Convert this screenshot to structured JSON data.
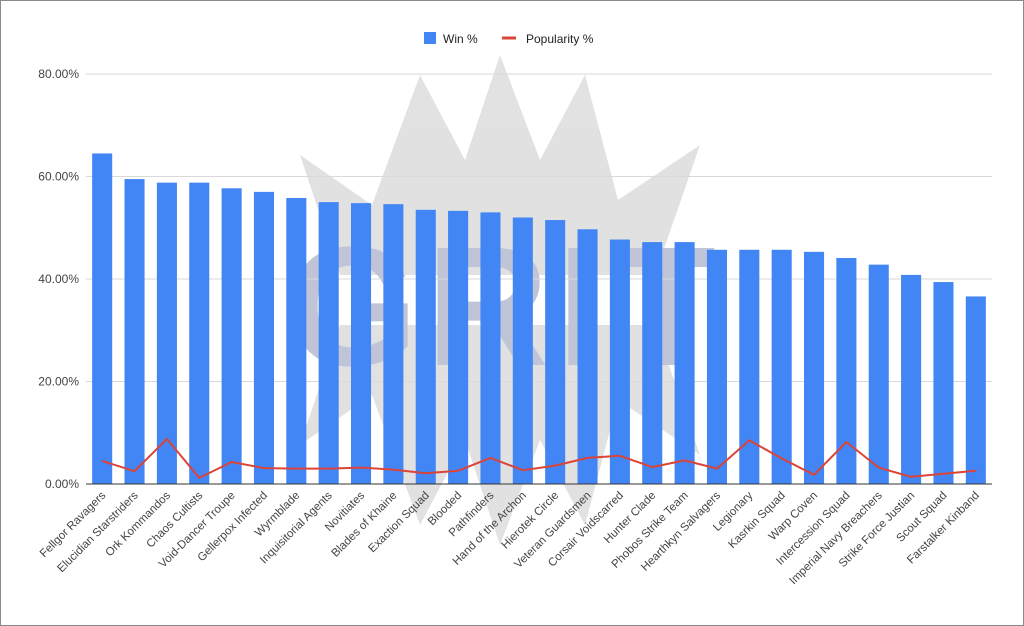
{
  "chart_data": {
    "type": "bar",
    "title": "",
    "xlabel": "",
    "ylabel": "",
    "ylim": [
      0,
      80
    ],
    "yticks": [
      "0.00%",
      "20.00%",
      "40.00%",
      "60.00%",
      "80.00%"
    ],
    "grid": true,
    "legend_position": "top-center",
    "categories": [
      "Fellgor Ravagers",
      "Elucidian Starstriders",
      "Ork Kommandos",
      "Chaos Cultists",
      "Void-Dancer Troupe",
      "Gellerpox Infected",
      "Wyrmblade",
      "Inquisitorial Agents",
      "Novitiates",
      "Blades of Khaine",
      "Exaction Squad",
      "Blooded",
      "Pathfinders",
      "Hand of the Archon",
      "Hierotek Circle",
      "Veteran Guardsmen",
      "Corsair Voidscarred",
      "Hunter Clade",
      "Phobos Strike Team",
      "Hearthkyn Salvagers",
      "Legionary",
      "Kasrkin Squad",
      "Warp Coven",
      "Intercession Squad",
      "Imperial Navy Breachers",
      "Strike Force Justian",
      "Scout Squad",
      "Farstalker Kinband"
    ],
    "series": [
      {
        "name": "Win %",
        "type": "bar",
        "color": "#4285f4",
        "values": [
          64.5,
          59.5,
          58.8,
          58.8,
          57.7,
          57.0,
          55.8,
          55.0,
          54.8,
          54.6,
          53.5,
          53.3,
          53.0,
          52.0,
          51.5,
          49.7,
          47.7,
          47.2,
          47.2,
          45.7,
          45.7,
          45.7,
          45.3,
          44.1,
          42.8,
          40.8,
          39.4,
          36.6
        ]
      },
      {
        "name": "Popularity %",
        "type": "line",
        "color": "#db4437",
        "values": [
          4.5,
          2.5,
          8.8,
          1.2,
          4.3,
          3.1,
          3.0,
          3.0,
          3.2,
          2.8,
          2.1,
          2.6,
          5.1,
          2.7,
          3.6,
          5.1,
          5.5,
          3.3,
          4.6,
          3.0,
          8.5,
          5.0,
          1.8,
          8.2,
          3.2,
          1.4,
          2.0,
          2.6
        ]
      }
    ]
  },
  "colors": {
    "gridline": "#d9d9d9",
    "axis": "#333333",
    "watermark": "#b3b3b3"
  },
  "watermark": {
    "text": "GRIT",
    "icon": "crown-logo"
  }
}
